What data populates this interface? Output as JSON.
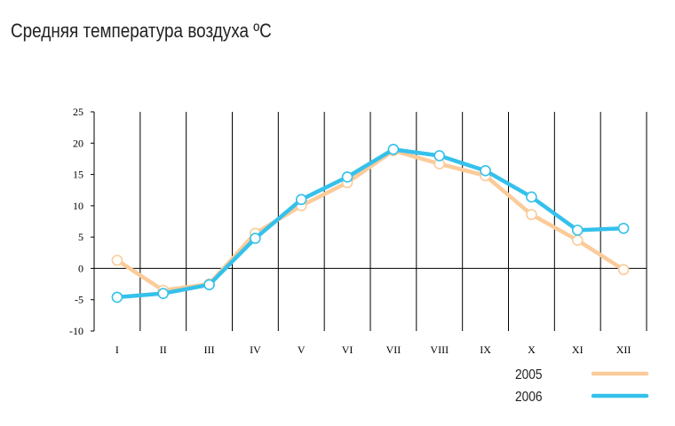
{
  "chart_data": {
    "type": "line",
    "title": "Средняя температура воздуха ºC",
    "xlabel": "",
    "ylabel": "",
    "categories": [
      "I",
      "II",
      "III",
      "IV",
      "V",
      "VI",
      "VII",
      "VIII",
      "IX",
      "X",
      "XI",
      "XII"
    ],
    "y_ticks": [
      "25",
      "20",
      "15",
      "10",
      "5",
      "0",
      "-5",
      "-10"
    ],
    "ylim": [
      -10,
      25
    ],
    "grid": "vertical",
    "legend_position": "bottom-right",
    "series": [
      {
        "name": "2005",
        "color": "#FBCB9A",
        "values": [
          1.3,
          -3.5,
          -2.5,
          5.6,
          10.0,
          13.7,
          18.8,
          16.7,
          14.8,
          8.6,
          4.5,
          -0.2
        ]
      },
      {
        "name": "2006",
        "color": "#35C1EB",
        "values": [
          -4.6,
          -4.0,
          -2.6,
          4.8,
          11.0,
          14.6,
          19.0,
          18.0,
          15.6,
          11.4,
          6.1,
          6.4
        ]
      }
    ]
  }
}
